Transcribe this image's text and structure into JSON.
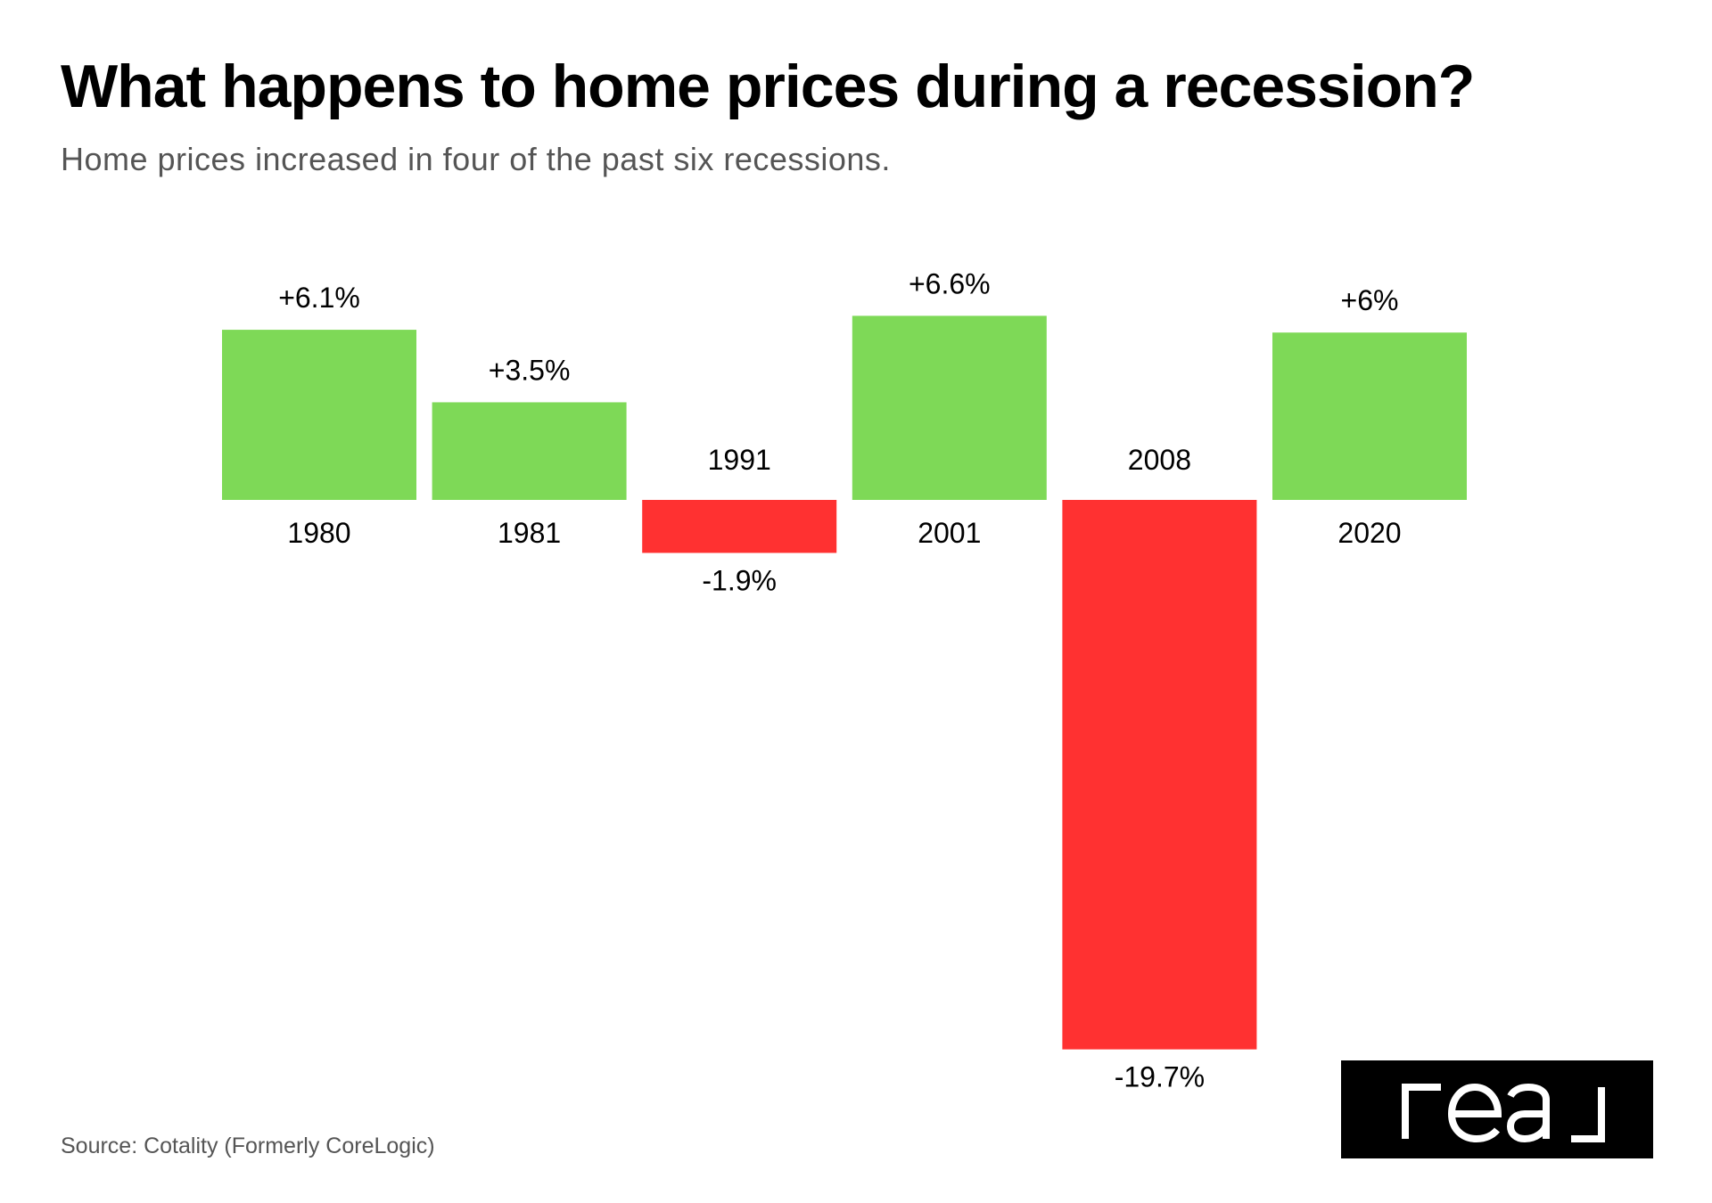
{
  "chart_data": {
    "type": "bar",
    "title": "What happens to home prices during a recession?",
    "subtitle": "Home prices increased in four of the past six recessions.",
    "categories": [
      "1980",
      "1981",
      "1991",
      "2001",
      "2008",
      "2020"
    ],
    "values": [
      6.1,
      3.5,
      -1.9,
      6.6,
      -19.7,
      6.0
    ],
    "value_labels": [
      "+6.1%",
      "+3.5%",
      "-1.9%",
      "+6.6%",
      "-19.7%",
      "+6%"
    ],
    "xlabel": "",
    "ylabel": "",
    "ylim": [
      -19.7,
      6.6
    ],
    "grid": false,
    "legend": "none",
    "colors": {
      "positive": "#7ED957",
      "negative": "#FF3131"
    }
  },
  "source": "Source: Cotality (Formerly CoreLogic)",
  "logo": {
    "text": "real",
    "background": "#000000",
    "foreground": "#ffffff"
  }
}
